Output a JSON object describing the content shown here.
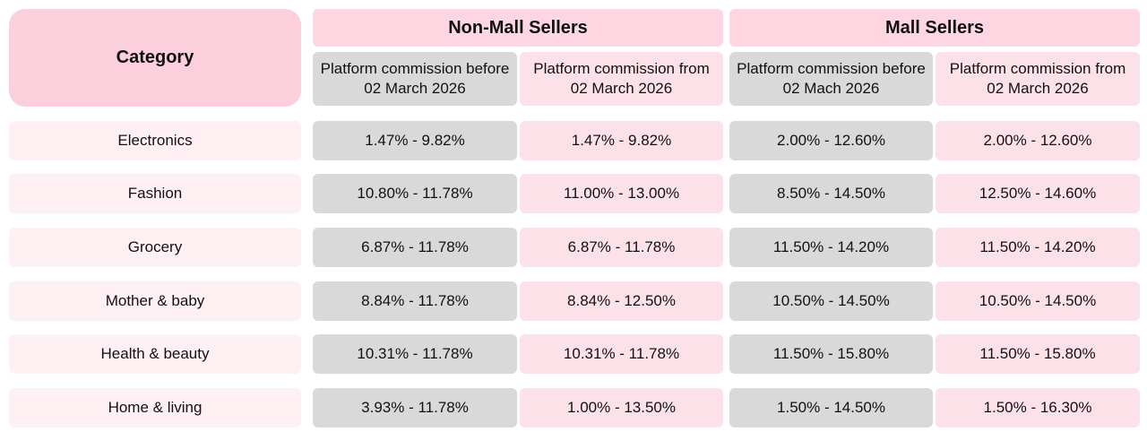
{
  "header": {
    "category_label": "Category",
    "non_mall_label": "Non-Mall Sellers",
    "mall_label": "Mall Sellers",
    "non_mall_before": "Platform commission before 02 March 2026",
    "non_mall_from": "Platform commission from 02 March 2026",
    "mall_before": "Platform commission before 02 Mach 2026",
    "mall_from": "Platform commission from 02 March 2026"
  },
  "rows": [
    {
      "category": "Electronics",
      "non_mall_before": "1.47% - 9.82%",
      "non_mall_from": "1.47% - 9.82%",
      "mall_before": "2.00% - 12.60%",
      "mall_from": "2.00% - 12.60%"
    },
    {
      "category": "Fashion",
      "non_mall_before": "10.80% - 11.78%",
      "non_mall_from": "11.00% - 13.00%",
      "mall_before": "8.50% - 14.50%",
      "mall_from": "12.50% - 14.60%"
    },
    {
      "category": "Grocery",
      "non_mall_before": "6.87% - 11.78%",
      "non_mall_from": "6.87% - 11.78%",
      "mall_before": "11.50% - 14.20%",
      "mall_from": "11.50% - 14.20%"
    },
    {
      "category": "Mother & baby",
      "non_mall_before": "8.84% - 11.78%",
      "non_mall_from": "8.84% - 12.50%",
      "mall_before": "10.50% - 14.50%",
      "mall_from": "10.50% - 14.50%"
    },
    {
      "category": "Health & beauty",
      "non_mall_before": "10.31% - 11.78%",
      "non_mall_from": "10.31% - 11.78%",
      "mall_before": "11.50% - 15.80%",
      "mall_from": "11.50% - 15.80%"
    },
    {
      "category": "Home & living",
      "non_mall_before": "3.93% - 11.78%",
      "non_mall_from": "1.00% - 13.50%",
      "mall_before": "1.50% - 14.50%",
      "mall_from": "1.50% - 16.30%"
    }
  ],
  "colors": {
    "header_pink": "#fccfdc",
    "group_pink": "#fed6e1",
    "cell_pink": "#fde1e8",
    "category_pink": "#fff0f4",
    "cell_gray": "#d9d9d9"
  }
}
